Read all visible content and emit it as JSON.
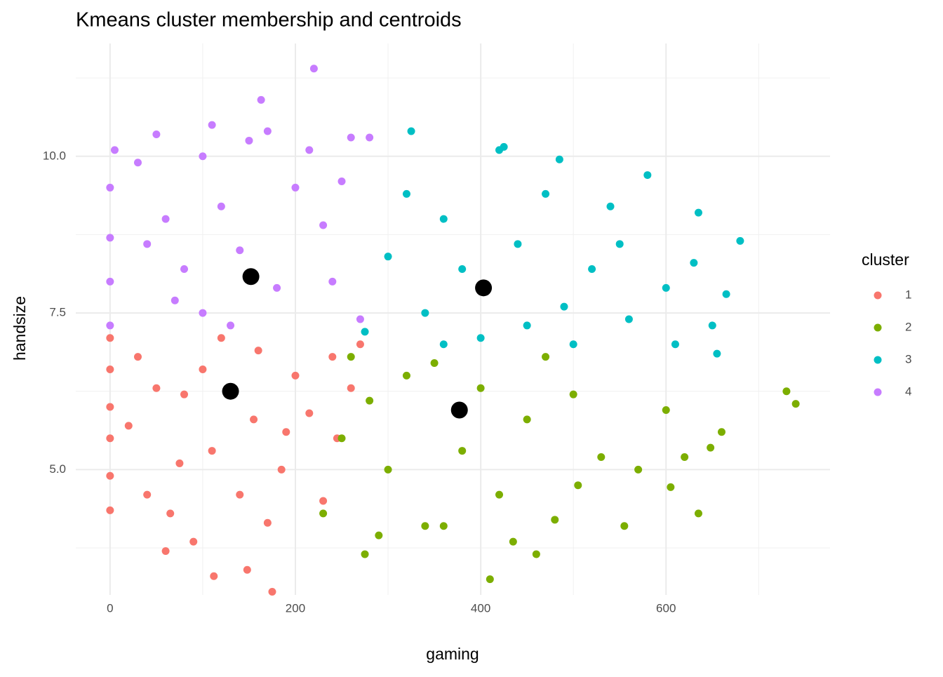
{
  "chart_data": {
    "type": "scatter",
    "title": "Kmeans cluster membership and centroids",
    "x_label": "gaming",
    "y_label": "handsize",
    "legend_title": "cluster",
    "legend_position": "right",
    "grid": true,
    "xlim": [
      -37,
      777
    ],
    "xticks": [
      0,
      200,
      400,
      600
    ],
    "xminor": [
      100,
      300,
      500,
      700
    ],
    "ylim": [
      3.0,
      11.8
    ],
    "yticks": [
      {
        "value": 5,
        "label": "5.0"
      },
      7.5,
      {
        "value": 10,
        "label": "10.0"
      }
    ],
    "yminor": [
      3.75,
      6.25,
      8.75,
      11.25
    ],
    "series": [
      {
        "name": "1",
        "color": "#F8766D",
        "x": [
          0,
          0,
          0,
          0,
          0,
          0,
          20,
          30,
          40,
          60,
          65,
          80,
          90,
          110,
          112,
          140,
          148,
          160,
          170,
          175,
          185,
          200,
          215,
          230,
          240,
          260,
          270,
          100,
          50,
          120,
          190,
          155,
          75,
          245
        ],
        "y": [
          4.35,
          4.9,
          5.5,
          6.0,
          6.6,
          7.1,
          5.7,
          6.8,
          4.6,
          3.7,
          4.3,
          6.2,
          3.85,
          5.3,
          3.3,
          4.6,
          3.4,
          6.9,
          4.15,
          3.05,
          5.0,
          6.5,
          5.9,
          4.5,
          6.8,
          6.3,
          7.0,
          6.6,
          6.3,
          7.1,
          5.6,
          5.8,
          5.1,
          5.5
        ]
      },
      {
        "name": "2",
        "color": "#7CAE00",
        "x": [
          230,
          250,
          260,
          275,
          280,
          290,
          300,
          320,
          340,
          360,
          380,
          400,
          410,
          420,
          435,
          450,
          460,
          480,
          500,
          505,
          530,
          555,
          570,
          600,
          605,
          620,
          635,
          648,
          660,
          730,
          740,
          350,
          470
        ],
        "y": [
          4.3,
          5.5,
          6.8,
          3.65,
          6.1,
          3.95,
          5.0,
          6.5,
          4.1,
          4.1,
          5.3,
          6.3,
          3.25,
          4.6,
          3.85,
          5.8,
          3.65,
          4.2,
          6.2,
          4.75,
          5.2,
          4.1,
          5.0,
          5.95,
          4.72,
          5.2,
          4.3,
          5.35,
          5.6,
          6.25,
          6.05,
          6.7,
          6.8
        ]
      },
      {
        "name": "3",
        "color": "#00BFC4",
        "x": [
          275,
          300,
          320,
          325,
          340,
          360,
          380,
          400,
          420,
          425,
          440,
          470,
          485,
          490,
          500,
          520,
          540,
          560,
          580,
          600,
          610,
          630,
          635,
          650,
          655,
          665,
          680,
          360,
          450,
          550
        ],
        "y": [
          7.2,
          8.4,
          9.4,
          10.4,
          7.5,
          9.0,
          8.2,
          7.1,
          10.1,
          10.15,
          8.6,
          9.4,
          9.95,
          7.6,
          7.0,
          8.2,
          9.2,
          7.4,
          9.7,
          7.9,
          7.0,
          8.3,
          9.1,
          7.3,
          6.85,
          7.8,
          8.65,
          7.0,
          7.3,
          8.6
        ]
      },
      {
        "name": "4",
        "color": "#C77CFF",
        "x": [
          0,
          0,
          0,
          0,
          5,
          30,
          50,
          60,
          80,
          100,
          110,
          120,
          140,
          150,
          163,
          170,
          200,
          215,
          220,
          240,
          250,
          260,
          270,
          280,
          100,
          40,
          180,
          230,
          130,
          70
        ],
        "y": [
          7.3,
          8.0,
          8.7,
          9.5,
          10.1,
          9.9,
          10.35,
          9.0,
          8.2,
          10.0,
          10.5,
          9.2,
          8.5,
          10.25,
          10.9,
          10.4,
          9.5,
          10.1,
          11.4,
          8.0,
          9.6,
          10.3,
          7.4,
          10.3,
          7.5,
          8.6,
          7.9,
          8.9,
          7.3,
          7.7
        ]
      }
    ],
    "centroids": {
      "color": "#000000",
      "x": [
        130,
        377,
        403,
        152
      ],
      "y": [
        6.25,
        5.95,
        7.9,
        8.08
      ]
    }
  }
}
